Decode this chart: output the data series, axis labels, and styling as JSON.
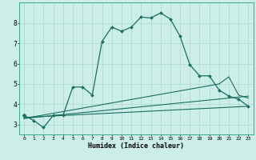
{
  "xlabel": "Humidex (Indice chaleur)",
  "bg_color": "#cceee8",
  "grid_color": "#aad8d0",
  "line_color": "#1a6e60",
  "xlim": [
    -0.5,
    23.5
  ],
  "ylim": [
    2.5,
    9.0
  ],
  "xticks": [
    0,
    1,
    2,
    3,
    4,
    5,
    6,
    7,
    8,
    9,
    10,
    11,
    12,
    13,
    14,
    15,
    16,
    17,
    18,
    19,
    20,
    21,
    22,
    23
  ],
  "yticks": [
    3,
    4,
    5,
    6,
    7,
    8
  ],
  "line_jagged": {
    "x": [
      1,
      2,
      3,
      4,
      5,
      6,
      7,
      8,
      9,
      10,
      11,
      12,
      13,
      14,
      15,
      16,
      17,
      18,
      19,
      20,
      21,
      22,
      23
    ],
    "y": [
      3.2,
      2.85,
      3.45,
      3.45,
      4.85,
      4.85,
      4.45,
      7.1,
      7.8,
      7.6,
      7.8,
      8.3,
      8.25,
      8.5,
      8.2,
      7.35,
      5.95,
      5.4,
      5.4,
      4.7,
      4.4,
      4.25,
      3.9
    ],
    "marker": "D",
    "markersize": 2.0,
    "linewidth": 0.9
  },
  "line_flat1": {
    "x": [
      0,
      23
    ],
    "y": [
      3.35,
      3.9
    ],
    "linewidth": 0.8
  },
  "line_flat2": {
    "x": [
      0,
      23
    ],
    "y": [
      3.3,
      4.4
    ],
    "linewidth": 0.8
  },
  "line_flat3": {
    "x": [
      0,
      20,
      21,
      22,
      23
    ],
    "y": [
      3.3,
      5.0,
      5.35,
      4.45,
      4.3
    ],
    "linewidth": 0.8
  },
  "line_start": {
    "x": [
      0
    ],
    "y": [
      3.45
    ]
  }
}
